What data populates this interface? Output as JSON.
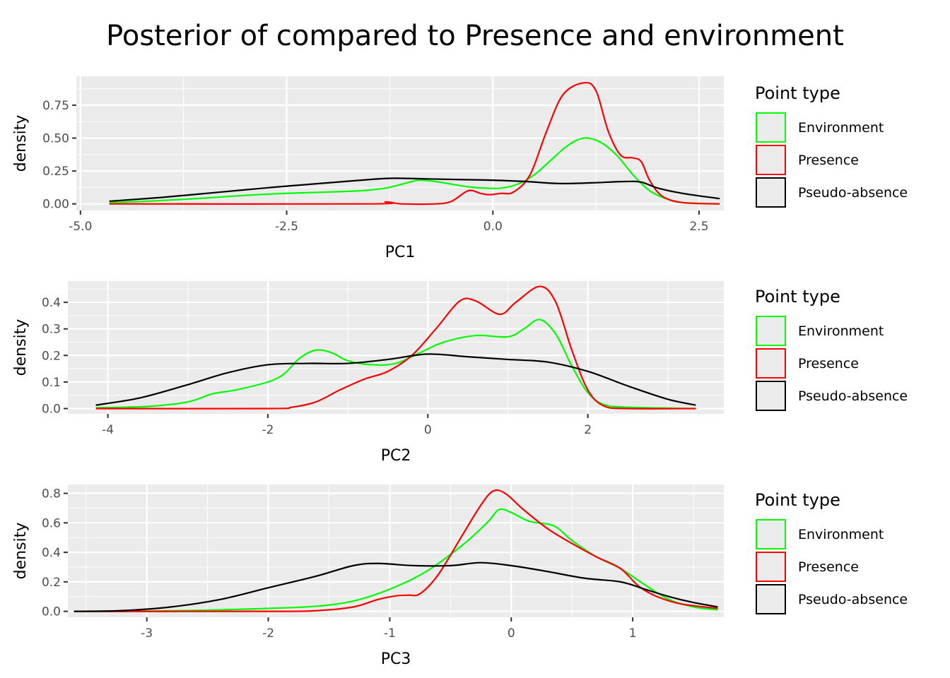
{
  "title": "Posterior of compared to Presence and environment",
  "legend": {
    "title": "Point type",
    "position": "right",
    "entries": [
      {
        "label": "Environment",
        "color": "#00ff00"
      },
      {
        "label": "Presence",
        "color": "#ff0000"
      },
      {
        "label": "Pseudo-absence",
        "color": "#000000"
      }
    ]
  },
  "chart_data": [
    {
      "type": "line",
      "xlabel": "PC1",
      "ylabel": "density",
      "xlim": [
        -5.05,
        2.8
      ],
      "ylim": [
        -0.05,
        0.97
      ],
      "xticks": [
        {
          "value": -5.0,
          "label": "-5.0"
        },
        {
          "value": -2.5,
          "label": "-2.5"
        },
        {
          "value": 0.0,
          "label": "0.0"
        },
        {
          "value": 2.5,
          "label": "2.5"
        }
      ],
      "yticks": [
        {
          "value": 0.0,
          "label": "0.00"
        },
        {
          "value": 0.25,
          "label": "0.25"
        },
        {
          "value": 0.5,
          "label": "0.50"
        },
        {
          "value": 0.75,
          "label": "0.75"
        }
      ],
      "grid": true,
      "series": [
        {
          "name": "Environment",
          "color": "#00ff00",
          "points": [
            [
              -4.65,
              0.01
            ],
            [
              -4.2,
              0.02
            ],
            [
              -3.6,
              0.04
            ],
            [
              -3.0,
              0.065
            ],
            [
              -2.5,
              0.08
            ],
            [
              -2.0,
              0.09
            ],
            [
              -1.6,
              0.1
            ],
            [
              -1.3,
              0.12
            ],
            [
              -1.1,
              0.15
            ],
            [
              -0.9,
              0.18
            ],
            [
              -0.7,
              0.17
            ],
            [
              -0.5,
              0.15
            ],
            [
              -0.3,
              0.13
            ],
            [
              -0.1,
              0.12
            ],
            [
              0.1,
              0.12
            ],
            [
              0.3,
              0.15
            ],
            [
              0.5,
              0.22
            ],
            [
              0.7,
              0.33
            ],
            [
              0.9,
              0.44
            ],
            [
              1.1,
              0.5
            ],
            [
              1.3,
              0.47
            ],
            [
              1.5,
              0.37
            ],
            [
              1.7,
              0.22
            ],
            [
              1.9,
              0.1
            ],
            [
              2.1,
              0.04
            ],
            [
              2.3,
              0.01
            ],
            [
              2.75,
              0.0
            ]
          ]
        },
        {
          "name": "Presence",
          "color": "#ff0000",
          "points": [
            [
              -4.65,
              0.0
            ],
            [
              -1.5,
              0.0
            ],
            [
              -1.3,
              0.015
            ],
            [
              -1.1,
              0.0
            ],
            [
              -0.7,
              0.0
            ],
            [
              -0.5,
              0.02
            ],
            [
              -0.3,
              0.1
            ],
            [
              -0.15,
              0.08
            ],
            [
              -0.05,
              0.07
            ],
            [
              0.1,
              0.08
            ],
            [
              0.25,
              0.09
            ],
            [
              0.45,
              0.22
            ],
            [
              0.65,
              0.55
            ],
            [
              0.85,
              0.83
            ],
            [
              1.1,
              0.92
            ],
            [
              1.25,
              0.86
            ],
            [
              1.4,
              0.55
            ],
            [
              1.55,
              0.37
            ],
            [
              1.7,
              0.35
            ],
            [
              1.8,
              0.32
            ],
            [
              1.9,
              0.18
            ],
            [
              2.05,
              0.06
            ],
            [
              2.3,
              0.01
            ],
            [
              2.75,
              0.0
            ]
          ]
        },
        {
          "name": "Pseudo-absence",
          "color": "#000000",
          "points": [
            [
              -4.65,
              0.02
            ],
            [
              -4.0,
              0.05
            ],
            [
              -3.3,
              0.09
            ],
            [
              -2.6,
              0.13
            ],
            [
              -2.0,
              0.16
            ],
            [
              -1.5,
              0.185
            ],
            [
              -1.2,
              0.195
            ],
            [
              -0.8,
              0.19
            ],
            [
              -0.4,
              0.185
            ],
            [
              0.0,
              0.18
            ],
            [
              0.4,
              0.17
            ],
            [
              0.8,
              0.155
            ],
            [
              1.2,
              0.16
            ],
            [
              1.6,
              0.17
            ],
            [
              1.8,
              0.165
            ],
            [
              2.0,
              0.12
            ],
            [
              2.3,
              0.08
            ],
            [
              2.75,
              0.04
            ]
          ]
        }
      ]
    },
    {
      "type": "line",
      "xlabel": "PC2",
      "ylabel": "density",
      "xlim": [
        -4.5,
        3.7
      ],
      "ylim": [
        -0.02,
        0.48
      ],
      "xticks": [
        {
          "value": -4,
          "label": "-4"
        },
        {
          "value": -2,
          "label": "-2"
        },
        {
          "value": 0,
          "label": "0"
        },
        {
          "value": 2,
          "label": "2"
        }
      ],
      "yticks": [
        {
          "value": 0.0,
          "label": "0.0"
        },
        {
          "value": 0.1,
          "label": "0.1"
        },
        {
          "value": 0.2,
          "label": "0.2"
        },
        {
          "value": 0.3,
          "label": "0.3"
        },
        {
          "value": 0.4,
          "label": "0.4"
        }
      ],
      "grid": true,
      "series": [
        {
          "name": "Environment",
          "color": "#00ff00",
          "points": [
            [
              -4.15,
              0.003
            ],
            [
              -3.5,
              0.008
            ],
            [
              -3.0,
              0.025
            ],
            [
              -2.7,
              0.055
            ],
            [
              -2.4,
              0.07
            ],
            [
              -2.0,
              0.1
            ],
            [
              -1.8,
              0.13
            ],
            [
              -1.6,
              0.19
            ],
            [
              -1.4,
              0.22
            ],
            [
              -1.2,
              0.21
            ],
            [
              -1.0,
              0.18
            ],
            [
              -0.7,
              0.165
            ],
            [
              -0.4,
              0.17
            ],
            [
              -0.1,
              0.21
            ],
            [
              0.2,
              0.25
            ],
            [
              0.6,
              0.275
            ],
            [
              1.0,
              0.27
            ],
            [
              1.2,
              0.3
            ],
            [
              1.4,
              0.335
            ],
            [
              1.6,
              0.28
            ],
            [
              1.8,
              0.16
            ],
            [
              2.0,
              0.06
            ],
            [
              2.2,
              0.015
            ],
            [
              2.5,
              0.005
            ],
            [
              3.35,
              0.0
            ]
          ]
        },
        {
          "name": "Presence",
          "color": "#ff0000",
          "points": [
            [
              -4.15,
              0.0
            ],
            [
              -2.0,
              0.0
            ],
            [
              -1.7,
              0.005
            ],
            [
              -1.4,
              0.025
            ],
            [
              -1.1,
              0.07
            ],
            [
              -0.8,
              0.11
            ],
            [
              -0.5,
              0.14
            ],
            [
              -0.2,
              0.2
            ],
            [
              0.1,
              0.3
            ],
            [
              0.4,
              0.405
            ],
            [
              0.6,
              0.405
            ],
            [
              0.9,
              0.355
            ],
            [
              1.1,
              0.4
            ],
            [
              1.4,
              0.46
            ],
            [
              1.6,
              0.4
            ],
            [
              1.8,
              0.22
            ],
            [
              2.0,
              0.07
            ],
            [
              2.2,
              0.01
            ],
            [
              2.5,
              0.0
            ],
            [
              3.35,
              0.0
            ]
          ]
        },
        {
          "name": "Pseudo-absence",
          "color": "#000000",
          "points": [
            [
              -4.15,
              0.013
            ],
            [
              -3.6,
              0.04
            ],
            [
              -3.0,
              0.09
            ],
            [
              -2.5,
              0.135
            ],
            [
              -2.0,
              0.165
            ],
            [
              -1.5,
              0.17
            ],
            [
              -1.0,
              0.17
            ],
            [
              -0.5,
              0.185
            ],
            [
              0.0,
              0.205
            ],
            [
              0.5,
              0.195
            ],
            [
              1.0,
              0.185
            ],
            [
              1.5,
              0.175
            ],
            [
              2.0,
              0.14
            ],
            [
              2.5,
              0.085
            ],
            [
              3.0,
              0.035
            ],
            [
              3.35,
              0.013
            ]
          ]
        }
      ]
    },
    {
      "type": "line",
      "xlabel": "PC3",
      "ylabel": "density",
      "xlim": [
        -3.65,
        1.75
      ],
      "ylim": [
        -0.04,
        0.86
      ],
      "xticks": [
        {
          "value": -3,
          "label": "-3"
        },
        {
          "value": -2,
          "label": "-2"
        },
        {
          "value": -1,
          "label": "-1"
        },
        {
          "value": 0,
          "label": "0"
        },
        {
          "value": 1,
          "label": "1"
        }
      ],
      "yticks": [
        {
          "value": 0.0,
          "label": "0.0"
        },
        {
          "value": 0.2,
          "label": "0.2"
        },
        {
          "value": 0.4,
          "label": "0.4"
        },
        {
          "value": 0.6,
          "label": "0.6"
        },
        {
          "value": 0.8,
          "label": "0.8"
        }
      ],
      "grid": true,
      "series": [
        {
          "name": "Environment",
          "color": "#00ff00",
          "points": [
            [
              -3.6,
              0.0
            ],
            [
              -3.0,
              0.002
            ],
            [
              -2.5,
              0.008
            ],
            [
              -2.0,
              0.02
            ],
            [
              -1.6,
              0.035
            ],
            [
              -1.3,
              0.07
            ],
            [
              -1.0,
              0.15
            ],
            [
              -0.7,
              0.27
            ],
            [
              -0.4,
              0.45
            ],
            [
              -0.2,
              0.6
            ],
            [
              -0.1,
              0.69
            ],
            [
              0.0,
              0.67
            ],
            [
              0.15,
              0.61
            ],
            [
              0.35,
              0.58
            ],
            [
              0.5,
              0.48
            ],
            [
              0.7,
              0.37
            ],
            [
              0.9,
              0.29
            ],
            [
              1.1,
              0.18
            ],
            [
              1.3,
              0.08
            ],
            [
              1.5,
              0.03
            ],
            [
              1.7,
              0.01
            ]
          ]
        },
        {
          "name": "Presence",
          "color": "#ff0000",
          "points": [
            [
              -3.6,
              0.0
            ],
            [
              -2.0,
              0.0
            ],
            [
              -1.6,
              0.005
            ],
            [
              -1.3,
              0.03
            ],
            [
              -1.1,
              0.08
            ],
            [
              -0.95,
              0.105
            ],
            [
              -0.85,
              0.11
            ],
            [
              -0.75,
              0.12
            ],
            [
              -0.6,
              0.25
            ],
            [
              -0.4,
              0.52
            ],
            [
              -0.25,
              0.72
            ],
            [
              -0.15,
              0.815
            ],
            [
              -0.05,
              0.8
            ],
            [
              0.1,
              0.69
            ],
            [
              0.3,
              0.56
            ],
            [
              0.5,
              0.46
            ],
            [
              0.7,
              0.37
            ],
            [
              0.9,
              0.29
            ],
            [
              1.05,
              0.17
            ],
            [
              1.2,
              0.1
            ],
            [
              1.4,
              0.05
            ],
            [
              1.7,
              0.02
            ]
          ]
        },
        {
          "name": "Pseudo-absence",
          "color": "#000000",
          "points": [
            [
              -3.6,
              0.0
            ],
            [
              -3.2,
              0.005
            ],
            [
              -2.8,
              0.03
            ],
            [
              -2.4,
              0.08
            ],
            [
              -2.0,
              0.16
            ],
            [
              -1.6,
              0.24
            ],
            [
              -1.3,
              0.31
            ],
            [
              -1.1,
              0.325
            ],
            [
              -0.8,
              0.31
            ],
            [
              -0.5,
              0.31
            ],
            [
              -0.25,
              0.33
            ],
            [
              0.0,
              0.31
            ],
            [
              0.3,
              0.27
            ],
            [
              0.6,
              0.225
            ],
            [
              0.9,
              0.2
            ],
            [
              1.1,
              0.15
            ],
            [
              1.3,
              0.1
            ],
            [
              1.5,
              0.06
            ],
            [
              1.7,
              0.03
            ]
          ]
        }
      ]
    }
  ]
}
